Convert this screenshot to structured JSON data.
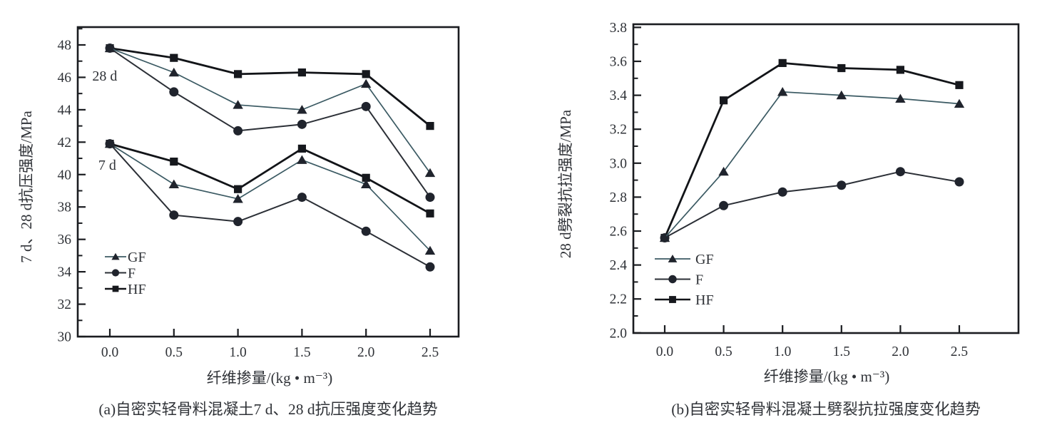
{
  "page": {
    "background": "#ffffff"
  },
  "chart_data": [
    {
      "id": "a",
      "type": "line",
      "caption": "(a)自密实轻骨料混凝土7 d、28 d抗压强度变化趋势",
      "xlabel": "纤维掺量/(kg • m⁻³)",
      "ylabel": "7 d、28 d抗压强度/MPa",
      "x": [
        0.0,
        0.5,
        1.0,
        1.5,
        2.0,
        2.5
      ],
      "xtick_labels": [
        "0.0",
        "0.5",
        "1.0",
        "1.5",
        "2.0",
        "2.5"
      ],
      "yticks": [
        30,
        32,
        34,
        36,
        38,
        40,
        42,
        44,
        46,
        48
      ],
      "ytick_labels": [
        "30",
        "32",
        "34",
        "36",
        "38",
        "40",
        "42",
        "44",
        "46",
        "48"
      ],
      "y_minor_step": 1,
      "xlim": [
        -0.2506,
        2.7227
      ],
      "ylim": [
        30,
        49.1
      ],
      "grid": false,
      "legend": {
        "position": "inside lower-left",
        "entries": [
          {
            "label": "GF",
            "marker": "triangle"
          },
          {
            "label": "F",
            "marker": "circle"
          },
          {
            "label": "HF",
            "marker": "square"
          }
        ]
      },
      "annotations": [
        {
          "text": "28 d",
          "x": -0.04,
          "y": 46.1
        },
        {
          "text": "7 d",
          "x": -0.02,
          "y": 40.6
        }
      ],
      "series": [
        {
          "name": "GF (28 d)",
          "label": "GF",
          "group": "28 d",
          "marker": "triangle",
          "color": "#3b5a63",
          "marker_color": "#20242d",
          "line_width": 1.7,
          "values": [
            47.8,
            46.3,
            44.3,
            44.0,
            45.6,
            40.1
          ]
        },
        {
          "name": "F (28 d)",
          "label": "F",
          "group": "28 d",
          "marker": "circle",
          "color": "#2b2f36",
          "marker_color": "#20242d",
          "line_width": 2.0,
          "values": [
            47.8,
            45.1,
            42.7,
            43.1,
            44.2,
            38.6
          ]
        },
        {
          "name": "HF (28 d)",
          "label": "HF",
          "group": "28 d",
          "marker": "square",
          "color": "#121418",
          "marker_color": "#16181d",
          "line_width": 2.8,
          "values": [
            47.8,
            47.2,
            46.2,
            46.3,
            46.2,
            43.0
          ]
        },
        {
          "name": "GF (7 d)",
          "label": "GF",
          "group": "7 d",
          "marker": "triangle",
          "color": "#3b5a63",
          "marker_color": "#20242d",
          "line_width": 1.7,
          "values": [
            41.9,
            39.4,
            38.5,
            40.9,
            39.4,
            35.3
          ]
        },
        {
          "name": "F (7 d)",
          "label": "F",
          "group": "7 d",
          "marker": "circle",
          "color": "#2b2f36",
          "marker_color": "#20242d",
          "line_width": 2.0,
          "values": [
            41.9,
            37.5,
            37.1,
            38.6,
            36.5,
            34.3
          ]
        },
        {
          "name": "HF (7 d)",
          "label": "HF",
          "group": "7 d",
          "marker": "square",
          "color": "#121418",
          "marker_color": "#16181d",
          "line_width": 2.8,
          "values": [
            41.9,
            40.8,
            39.1,
            41.6,
            39.8,
            37.6
          ]
        }
      ]
    },
    {
      "id": "b",
      "type": "line",
      "caption": "(b)自密实轻骨料混凝土劈裂抗拉强度变化趋势",
      "xlabel": "纤维掺量/(kg • m⁻³)",
      "ylabel": "28 d劈裂抗拉强度/MPa",
      "x": [
        0.0,
        0.5,
        1.0,
        1.5,
        2.0,
        2.5
      ],
      "xtick_labels": [
        "0.0",
        "0.5",
        "1.0",
        "1.5",
        "2.0",
        "2.5"
      ],
      "yticks": [
        2.0,
        2.2,
        2.4,
        2.6,
        2.8,
        3.0,
        3.2,
        3.4,
        3.6,
        3.8
      ],
      "ytick_labels": [
        "2.0",
        "2.2",
        "2.4",
        "2.6",
        "2.8",
        "3.0",
        "3.2",
        "3.4",
        "3.6",
        "3.8"
      ],
      "y_minor_step": 0.1,
      "xlim": [
        -0.2663,
        3.0025
      ],
      "ylim": [
        1.9992,
        3.8185
      ],
      "grid": false,
      "legend": {
        "position": "inside lower-left",
        "entries": [
          {
            "label": "GF",
            "marker": "triangle"
          },
          {
            "label": "F",
            "marker": "circle"
          },
          {
            "label": "HF",
            "marker": "square"
          }
        ]
      },
      "annotations": [],
      "series": [
        {
          "name": "GF",
          "label": "GF",
          "group": "28 d",
          "marker": "triangle",
          "color": "#3b5a63",
          "marker_color": "#20242d",
          "line_width": 1.7,
          "values": [
            2.56,
            2.95,
            3.42,
            3.4,
            3.38,
            3.35
          ]
        },
        {
          "name": "F",
          "label": "F",
          "group": "28 d",
          "marker": "circle",
          "color": "#2b2f36",
          "marker_color": "#20242d",
          "line_width": 2.0,
          "values": [
            2.56,
            2.75,
            2.83,
            2.87,
            2.95,
            2.89
          ]
        },
        {
          "name": "HF",
          "label": "HF",
          "group": "28 d",
          "marker": "square",
          "color": "#121418",
          "marker_color": "#16181d",
          "line_width": 2.8,
          "values": [
            2.56,
            3.37,
            3.59,
            3.56,
            3.55,
            3.46
          ]
        }
      ]
    }
  ]
}
